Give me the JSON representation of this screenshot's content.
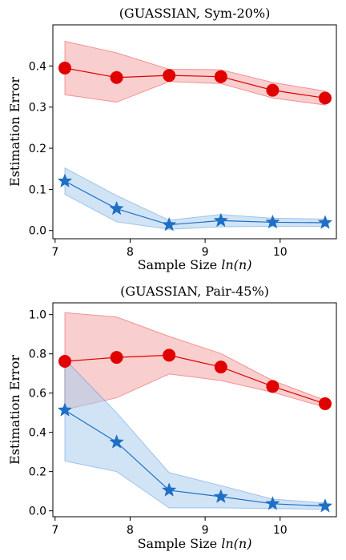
{
  "chart_data": [
    {
      "type": "line",
      "title": "(GUASSIAN, Sym-20%)",
      "xlabel_prefix": "Sample Size ",
      "xlabel_math": "ln(n)",
      "ylabel": "Estimation Error",
      "xlim": [
        6.97,
        10.75
      ],
      "ylim": [
        -0.02,
        0.5
      ],
      "xticks": [
        7,
        8,
        9,
        10
      ],
      "yticks": [
        0.0,
        0.1,
        0.2,
        0.3,
        0.4
      ],
      "x": [
        7.13,
        7.82,
        8.52,
        9.21,
        9.9,
        10.6
      ],
      "series": [
        {
          "color": "#e00000",
          "fill": "#f4a6a6",
          "marker": "circle",
          "values": [
            0.395,
            0.372,
            0.377,
            0.374,
            0.341,
            0.322
          ],
          "lower": [
            0.33,
            0.312,
            0.362,
            0.357,
            0.322,
            0.305
          ],
          "upper": [
            0.46,
            0.432,
            0.392,
            0.391,
            0.36,
            0.339
          ]
        },
        {
          "color": "#1f6fc5",
          "fill": "#a9cdee",
          "marker": "star",
          "values": [
            0.12,
            0.053,
            0.014,
            0.024,
            0.02,
            0.019
          ],
          "lower": [
            0.088,
            0.021,
            0.003,
            0.009,
            0.01,
            0.01
          ],
          "upper": [
            0.152,
            0.085,
            0.025,
            0.039,
            0.03,
            0.028
          ]
        }
      ]
    },
    {
      "type": "line",
      "title": "(GUASSIAN, Pair-45%)",
      "xlabel_prefix": "Sample Size ",
      "xlabel_math": "ln(n)",
      "ylabel": "Estimation Error",
      "xlim": [
        6.97,
        10.75
      ],
      "ylim": [
        -0.03,
        1.06
      ],
      "xticks": [
        7,
        8,
        9,
        10
      ],
      "yticks": [
        0.0,
        0.2,
        0.4,
        0.6,
        0.8,
        1.0
      ],
      "x": [
        7.13,
        7.82,
        8.52,
        9.21,
        9.9,
        10.6
      ],
      "series": [
        {
          "color": "#e00000",
          "fill": "#f4a6a6",
          "marker": "circle",
          "values": [
            0.762,
            0.782,
            0.793,
            0.733,
            0.634,
            0.546
          ],
          "lower": [
            0.515,
            0.576,
            0.697,
            0.664,
            0.604,
            0.528
          ],
          "upper": [
            1.01,
            0.988,
            0.889,
            0.802,
            0.664,
            0.564
          ]
        },
        {
          "color": "#1f6fc5",
          "fill": "#a9cdee",
          "marker": "star",
          "values": [
            0.513,
            0.35,
            0.105,
            0.072,
            0.036,
            0.024
          ],
          "lower": [
            0.254,
            0.2,
            0.015,
            0.015,
            0.012,
            0.008
          ],
          "upper": [
            0.772,
            0.5,
            0.195,
            0.129,
            0.06,
            0.04
          ]
        }
      ]
    }
  ]
}
